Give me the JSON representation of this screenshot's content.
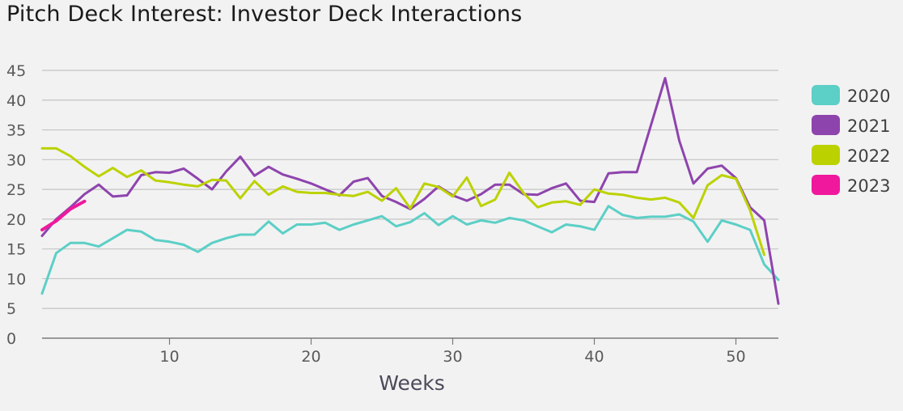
{
  "title": "Pitch Deck Interest: Investor Deck Interactions",
  "chart_data": {
    "type": "line",
    "title": "Pitch Deck Interest: Investor Deck Interactions",
    "xlabel": "Weeks",
    "ylabel": "",
    "xlim": [
      1,
      53
    ],
    "ylim": [
      0,
      45
    ],
    "x_ticks": [
      10,
      20,
      30,
      40,
      50
    ],
    "y_ticks": [
      0,
      5,
      10,
      15,
      20,
      25,
      30,
      35,
      40,
      45
    ],
    "grid": true,
    "legend_position": "right",
    "series": [
      {
        "name": "2020",
        "color": "#5ccfc6",
        "x": [
          1,
          2,
          3,
          4,
          5,
          6,
          7,
          8,
          9,
          10,
          11,
          12,
          13,
          14,
          15,
          16,
          17,
          18,
          19,
          20,
          21,
          22,
          23,
          24,
          25,
          26,
          27,
          28,
          29,
          30,
          31,
          32,
          33,
          34,
          35,
          36,
          37,
          38,
          39,
          40,
          41,
          42,
          43,
          44,
          45,
          46,
          47,
          48,
          49,
          50,
          51,
          52,
          53
        ],
        "values": [
          7.5,
          14.3,
          16,
          16,
          15.4,
          16.8,
          18.2,
          17.9,
          16.5,
          16.2,
          15.7,
          14.5,
          16,
          16.8,
          17.4,
          17.4,
          19.6,
          17.6,
          19.1,
          19.1,
          19.4,
          18.2,
          19.1,
          19.8,
          20.5,
          18.8,
          19.5,
          21,
          19,
          20.5,
          19.1,
          19.8,
          19.4,
          20.2,
          19.8,
          18.8,
          17.8,
          19.1,
          18.8,
          18.2,
          22.2,
          20.7,
          20.2,
          20.4,
          20.4,
          20.8,
          19.6,
          16.2,
          19.8,
          19.1,
          18.2,
          12.4,
          9.8
        ]
      },
      {
        "name": "2021",
        "color": "#8e44ad",
        "x": [
          1,
          2,
          3,
          4,
          5,
          6,
          7,
          8,
          9,
          10,
          11,
          12,
          13,
          14,
          15,
          16,
          17,
          18,
          19,
          20,
          21,
          22,
          23,
          24,
          25,
          26,
          27,
          28,
          29,
          30,
          31,
          32,
          33,
          34,
          35,
          36,
          37,
          38,
          39,
          40,
          41,
          42,
          43,
          44,
          45,
          46,
          47,
          48,
          49,
          50,
          51,
          52,
          53
        ],
        "values": [
          17.2,
          20,
          22,
          24.2,
          25.8,
          23.8,
          24,
          27.4,
          27.9,
          27.8,
          28.5,
          26.8,
          25,
          28,
          30.5,
          27.3,
          28.8,
          27.5,
          26.8,
          26,
          25,
          24,
          26.3,
          26.9,
          23.9,
          22.9,
          21.7,
          23.4,
          25.5,
          24,
          23.1,
          24.2,
          25.8,
          25.8,
          24.2,
          24.1,
          25.2,
          26,
          23.1,
          22.9,
          27.7,
          27.9,
          27.9,
          35.8,
          43.7,
          33.2,
          26,
          28.5,
          29,
          26.9,
          22,
          19.8,
          5.8
        ]
      },
      {
        "name": "2022",
        "color": "#bcd200",
        "x": [
          1,
          2,
          3,
          4,
          5,
          6,
          7,
          8,
          9,
          10,
          11,
          12,
          13,
          14,
          15,
          16,
          17,
          18,
          19,
          20,
          21,
          22,
          23,
          24,
          25,
          26,
          27,
          28,
          29,
          30,
          31,
          32,
          33,
          34,
          35,
          36,
          37,
          38,
          39,
          40,
          41,
          42,
          43,
          44,
          45,
          46,
          47,
          48,
          49,
          50,
          51,
          52
        ],
        "values": [
          31.9,
          31.9,
          30.6,
          28.8,
          27.2,
          28.6,
          27.1,
          28.2,
          26.5,
          26.2,
          25.8,
          25.5,
          26.6,
          26.5,
          23.5,
          26.4,
          24.1,
          25.5,
          24.6,
          24.4,
          24.4,
          24.1,
          23.9,
          24.6,
          23.1,
          25.2,
          21.8,
          26,
          25.4,
          23.8,
          27,
          22.2,
          23.3,
          27.8,
          24.4,
          22,
          22.8,
          23,
          22.4,
          25,
          24.3,
          24.1,
          23.6,
          23.3,
          23.6,
          22.8,
          20.2,
          25.7,
          27.4,
          26.8,
          21.5,
          14
        ]
      },
      {
        "name": "2023",
        "color": "#f0189c",
        "x": [
          1,
          2,
          3,
          4
        ],
        "values": [
          18.2,
          19.7,
          21.7,
          23
        ]
      }
    ]
  },
  "colors": {
    "background": "#f2f2f2",
    "grid": "#c4c4c4",
    "axis": "#7a7a7a"
  }
}
